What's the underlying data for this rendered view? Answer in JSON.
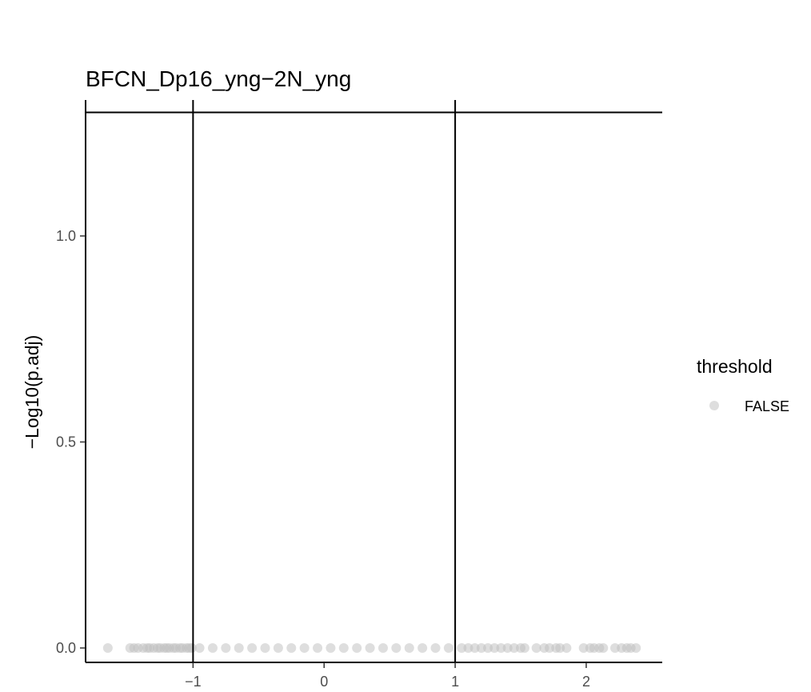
{
  "chart_data": {
    "type": "scatter",
    "title": "BFCN_Dp16_yng−2N_yng",
    "xlabel": "",
    "ylabel": "−Log10(p.adj)",
    "xlim": [
      -1.82,
      2.58
    ],
    "ylim": [
      -0.035,
      1.33
    ],
    "x_ticks": [
      -1,
      0,
      1,
      2
    ],
    "x_tick_labels": [
      "−1",
      "0",
      "1",
      "2"
    ],
    "y_ticks": [
      0.0,
      0.5,
      1.0
    ],
    "y_tick_labels": [
      "0.0",
      "0.5",
      "1.0"
    ],
    "grid": false,
    "reference_lines": {
      "vertical_x": [
        -1,
        1
      ],
      "horizontal_y": [
        1.3
      ]
    },
    "legend": {
      "title": "threshold",
      "placement": "right",
      "entries": [
        {
          "label": "FALSE",
          "color": "#bdbdbd"
        }
      ]
    },
    "series": [
      {
        "name": "FALSE",
        "color": "#bdbdbd",
        "opacity": 0.5,
        "y_all": 0.0,
        "x": [
          -1.65,
          -1.48,
          -1.45,
          -1.42,
          -1.38,
          -1.35,
          -1.33,
          -1.3,
          -1.27,
          -1.25,
          -1.22,
          -1.2,
          -1.18,
          -1.15,
          -1.13,
          -1.1,
          -1.08,
          -1.05,
          -1.03,
          -1.01,
          -0.95,
          -0.85,
          -0.75,
          -0.65,
          -0.55,
          -0.45,
          -0.35,
          -0.25,
          -0.15,
          -0.05,
          0.05,
          0.15,
          0.25,
          0.35,
          0.45,
          0.55,
          0.65,
          0.75,
          0.85,
          0.95,
          1.05,
          1.1,
          1.15,
          1.2,
          1.25,
          1.3,
          1.35,
          1.4,
          1.45,
          1.5,
          1.53,
          1.62,
          1.68,
          1.72,
          1.77,
          1.8,
          1.85,
          1.98,
          2.03,
          2.06,
          2.1,
          2.13,
          2.22,
          2.27,
          2.31,
          2.34,
          2.38
        ]
      }
    ]
  }
}
